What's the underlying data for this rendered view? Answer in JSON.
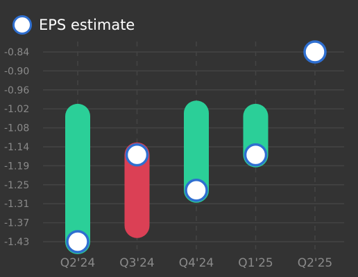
{
  "chart_data": {
    "type": "range-bar",
    "categories": [
      "Q2'24",
      "Q3'24",
      "Q4'24",
      "Q1'25",
      "Q2'25"
    ],
    "y_ticks": [
      "-0.84",
      "-0.90",
      "-0.96",
      "-1.02",
      "-1.08",
      "-1.14",
      "-1.19",
      "-1.25",
      "-1.31",
      "-1.37",
      "-1.43"
    ],
    "ylim": [
      -1.43,
      -0.84
    ],
    "grid": true,
    "legend_position": "top-left",
    "series": [
      {
        "name": "EPS estimate",
        "values": [
          -1.43,
          -1.16,
          -1.27,
          -1.16,
          -0.84
        ],
        "marker_color": "#ffffff",
        "marker_border": "#2f6fd0"
      }
    ],
    "ranges": [
      {
        "category": "Q2'24",
        "high": -1.04,
        "low": -1.43,
        "color": "#2bcf98"
      },
      {
        "category": "Q3'24",
        "high": -1.16,
        "low": -1.38,
        "color": "#db4055"
      },
      {
        "category": "Q4'24",
        "high": -1.03,
        "low": -1.27,
        "color": "#2bcf98"
      },
      {
        "category": "Q1'25",
        "high": -1.04,
        "low": -1.16,
        "color": "#2bcf98"
      },
      {
        "category": "Q2'25",
        "high": null,
        "low": null,
        "color": null
      }
    ]
  },
  "colors": {
    "background": "#333333",
    "grid": "#444444",
    "tick_text": "#8a8a8a",
    "legend_text": "#ffffff"
  }
}
